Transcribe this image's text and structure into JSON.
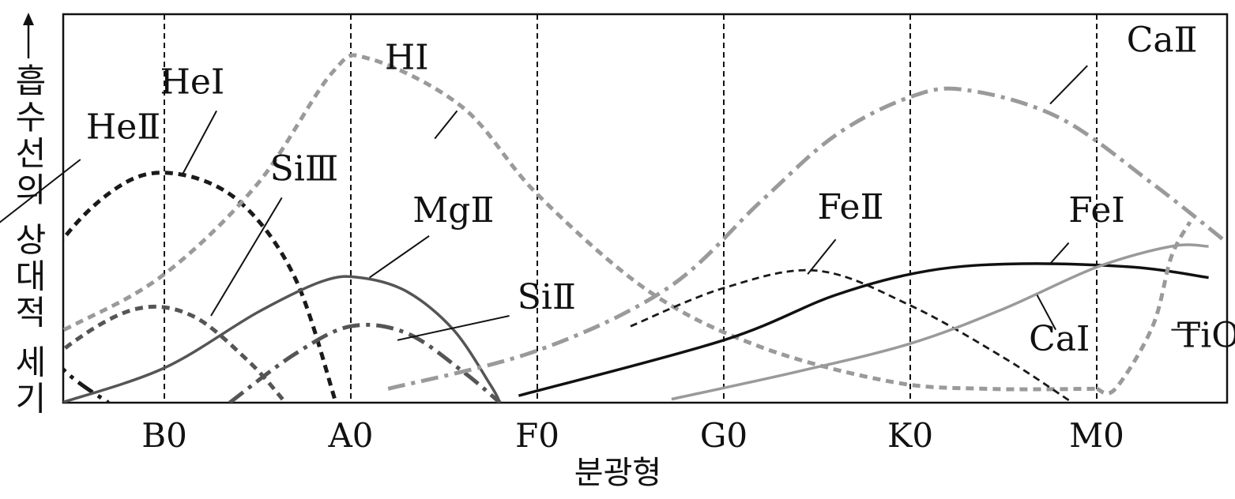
{
  "chart_data": {
    "type": "line",
    "title": "",
    "xlabel": "분광형",
    "ylabel": "흡수선의 상대적 세기",
    "y_axis_arrow": true,
    "x_ticks": [
      "B0",
      "A0",
      "F0",
      "G0",
      "K0",
      "M0"
    ],
    "x_tick_values": [
      1,
      2,
      3,
      4,
      5,
      6
    ],
    "xlim": [
      0.0,
      6.8
    ],
    "ylim": [
      0,
      100
    ],
    "y_ticks_shown": false,
    "vertical_guides": [
      1,
      2,
      3,
      4,
      5,
      6
    ],
    "series": [
      {
        "name": "HeⅡ",
        "color": "#1a1a1a",
        "style": "dashdot",
        "points": [
          [
            0.0,
            45
          ],
          [
            0.2,
            28
          ],
          [
            0.45,
            10
          ],
          [
            0.7,
            0
          ]
        ]
      },
      {
        "name": "HeⅠ",
        "color": "#1a1a1a",
        "style": "dotted",
        "points": [
          [
            0.0,
            5
          ],
          [
            0.4,
            43
          ],
          [
            0.75,
            62
          ],
          [
            1.05,
            66
          ],
          [
            1.4,
            58
          ],
          [
            1.7,
            36
          ],
          [
            1.92,
            0
          ]
        ]
      },
      {
        "name": "HⅠ",
        "color": "#9a9a9a",
        "style": "dotted",
        "points": [
          [
            0.0,
            10
          ],
          [
            0.5,
            22
          ],
          [
            1.0,
            37
          ],
          [
            1.5,
            63
          ],
          [
            1.9,
            95
          ],
          [
            2.1,
            99
          ],
          [
            2.6,
            85
          ],
          [
            3.0,
            60
          ],
          [
            3.6,
            32
          ],
          [
            4.2,
            16
          ],
          [
            4.9,
            6
          ],
          [
            5.4,
            4
          ],
          [
            6.0,
            4
          ]
        ]
      },
      {
        "name": "SiⅢ",
        "color": "#555555",
        "style": "dotted",
        "points": [
          [
            0.15,
            0
          ],
          [
            0.5,
            17
          ],
          [
            0.85,
            27
          ],
          [
            1.15,
            25
          ],
          [
            1.45,
            12
          ],
          [
            1.65,
            0
          ]
        ]
      },
      {
        "name": "MgⅡ",
        "color": "#555555",
        "style": "solid",
        "points": [
          [
            0.45,
            0
          ],
          [
            1.0,
            10
          ],
          [
            1.5,
            26
          ],
          [
            1.85,
            35
          ],
          [
            2.05,
            36
          ],
          [
            2.3,
            32
          ],
          [
            2.55,
            21
          ],
          [
            2.75,
            5
          ],
          [
            2.8,
            0
          ]
        ]
      },
      {
        "name": "SiⅡ",
        "color": "#555555",
        "style": "dashdot",
        "points": [
          [
            1.35,
            0
          ],
          [
            1.7,
            14
          ],
          [
            2.0,
            22
          ],
          [
            2.3,
            20
          ],
          [
            2.6,
            9
          ],
          [
            2.8,
            0
          ]
        ]
      },
      {
        "name": "CaⅡ",
        "color": "#9a9a9a",
        "style": "dashdot",
        "points": [
          [
            2.2,
            4
          ],
          [
            3.0,
            15
          ],
          [
            3.7,
            33
          ],
          [
            4.2,
            58
          ],
          [
            4.6,
            77
          ],
          [
            5.0,
            88
          ],
          [
            5.3,
            90
          ],
          [
            5.8,
            82
          ],
          [
            6.3,
            63
          ],
          [
            6.7,
            46
          ]
        ]
      },
      {
        "name": "FeⅡ",
        "color": "#1a1a1a",
        "style": "dashed",
        "points": [
          [
            3.5,
            22
          ],
          [
            4.0,
            33
          ],
          [
            4.5,
            38
          ],
          [
            5.0,
            28
          ],
          [
            5.5,
            13
          ],
          [
            5.87,
            0
          ]
        ]
      },
      {
        "name": "FeⅠ",
        "color": "#111111",
        "style": "solid",
        "points": [
          [
            2.9,
            2
          ],
          [
            4.0,
            18
          ],
          [
            4.6,
            31
          ],
          [
            5.1,
            38
          ],
          [
            5.6,
            40
          ],
          [
            6.2,
            39
          ],
          [
            6.6,
            36
          ]
        ]
      },
      {
        "name": "CaⅠ",
        "color": "#9a9a9a",
        "style": "solid",
        "points": [
          [
            3.72,
            1
          ],
          [
            4.4,
            9
          ],
          [
            5.0,
            17
          ],
          [
            5.5,
            27
          ],
          [
            6.0,
            39
          ],
          [
            6.4,
            45
          ],
          [
            6.6,
            45
          ]
        ]
      },
      {
        "name": "TiO",
        "color": "#9a9a9a",
        "style": "dotted",
        "points": [
          [
            6.0,
            4
          ],
          [
            6.1,
            4
          ],
          [
            6.3,
            22
          ],
          [
            6.4,
            42
          ],
          [
            6.5,
            52
          ]
        ]
      }
    ],
    "series_labels": [
      {
        "text": "HeⅡ",
        "x": 0.78,
        "y": 76,
        "lx": 0.55,
        "ly": 70,
        "tx": 0.0,
        "ty": 47
      },
      {
        "text": "HeⅠ",
        "x": 1.15,
        "y": 89,
        "lx": 1.28,
        "ly": 84,
        "tx": 1.1,
        "ty": 66
      },
      {
        "text": "HⅠ",
        "x": 2.3,
        "y": 96,
        "lx": 2.57,
        "ly": 84,
        "tx": 2.45,
        "ty": 76
      },
      {
        "text": "SiⅢ",
        "x": 1.75,
        "y": 64,
        "lx": 1.63,
        "ly": 59,
        "tx": 1.25,
        "ty": 25
      },
      {
        "text": "MgⅡ",
        "x": 2.55,
        "y": 52,
        "lx": 2.42,
        "ly": 48,
        "tx": 2.1,
        "ty": 36
      },
      {
        "text": "SiⅡ",
        "x": 3.05,
        "y": 27,
        "lx": 2.85,
        "ly": 25,
        "tx": 2.25,
        "ty": 18
      },
      {
        "text": "CaⅡ",
        "x": 6.35,
        "y": 101,
        "lx": 5.95,
        "ly": 97,
        "tx": 5.75,
        "ty": 86
      },
      {
        "text": "FeⅡ",
        "x": 4.68,
        "y": 53,
        "lx": 4.6,
        "ly": 47,
        "tx": 4.45,
        "ty": 37
      },
      {
        "text": "FeⅠ",
        "x": 6.0,
        "y": 52,
        "lx": 5.85,
        "ly": 46,
        "tx": 5.75,
        "ty": 40
      },
      {
        "text": "CaⅠ",
        "x": 5.8,
        "y": 15,
        "lx": 5.78,
        "ly": 21,
        "tx": 5.68,
        "ty": 31
      },
      {
        "text": "TiO",
        "x": 6.6,
        "y": 16,
        "lx": 6.55,
        "ly": 21,
        "tx": 6.4,
        "ty": 21
      }
    ]
  }
}
